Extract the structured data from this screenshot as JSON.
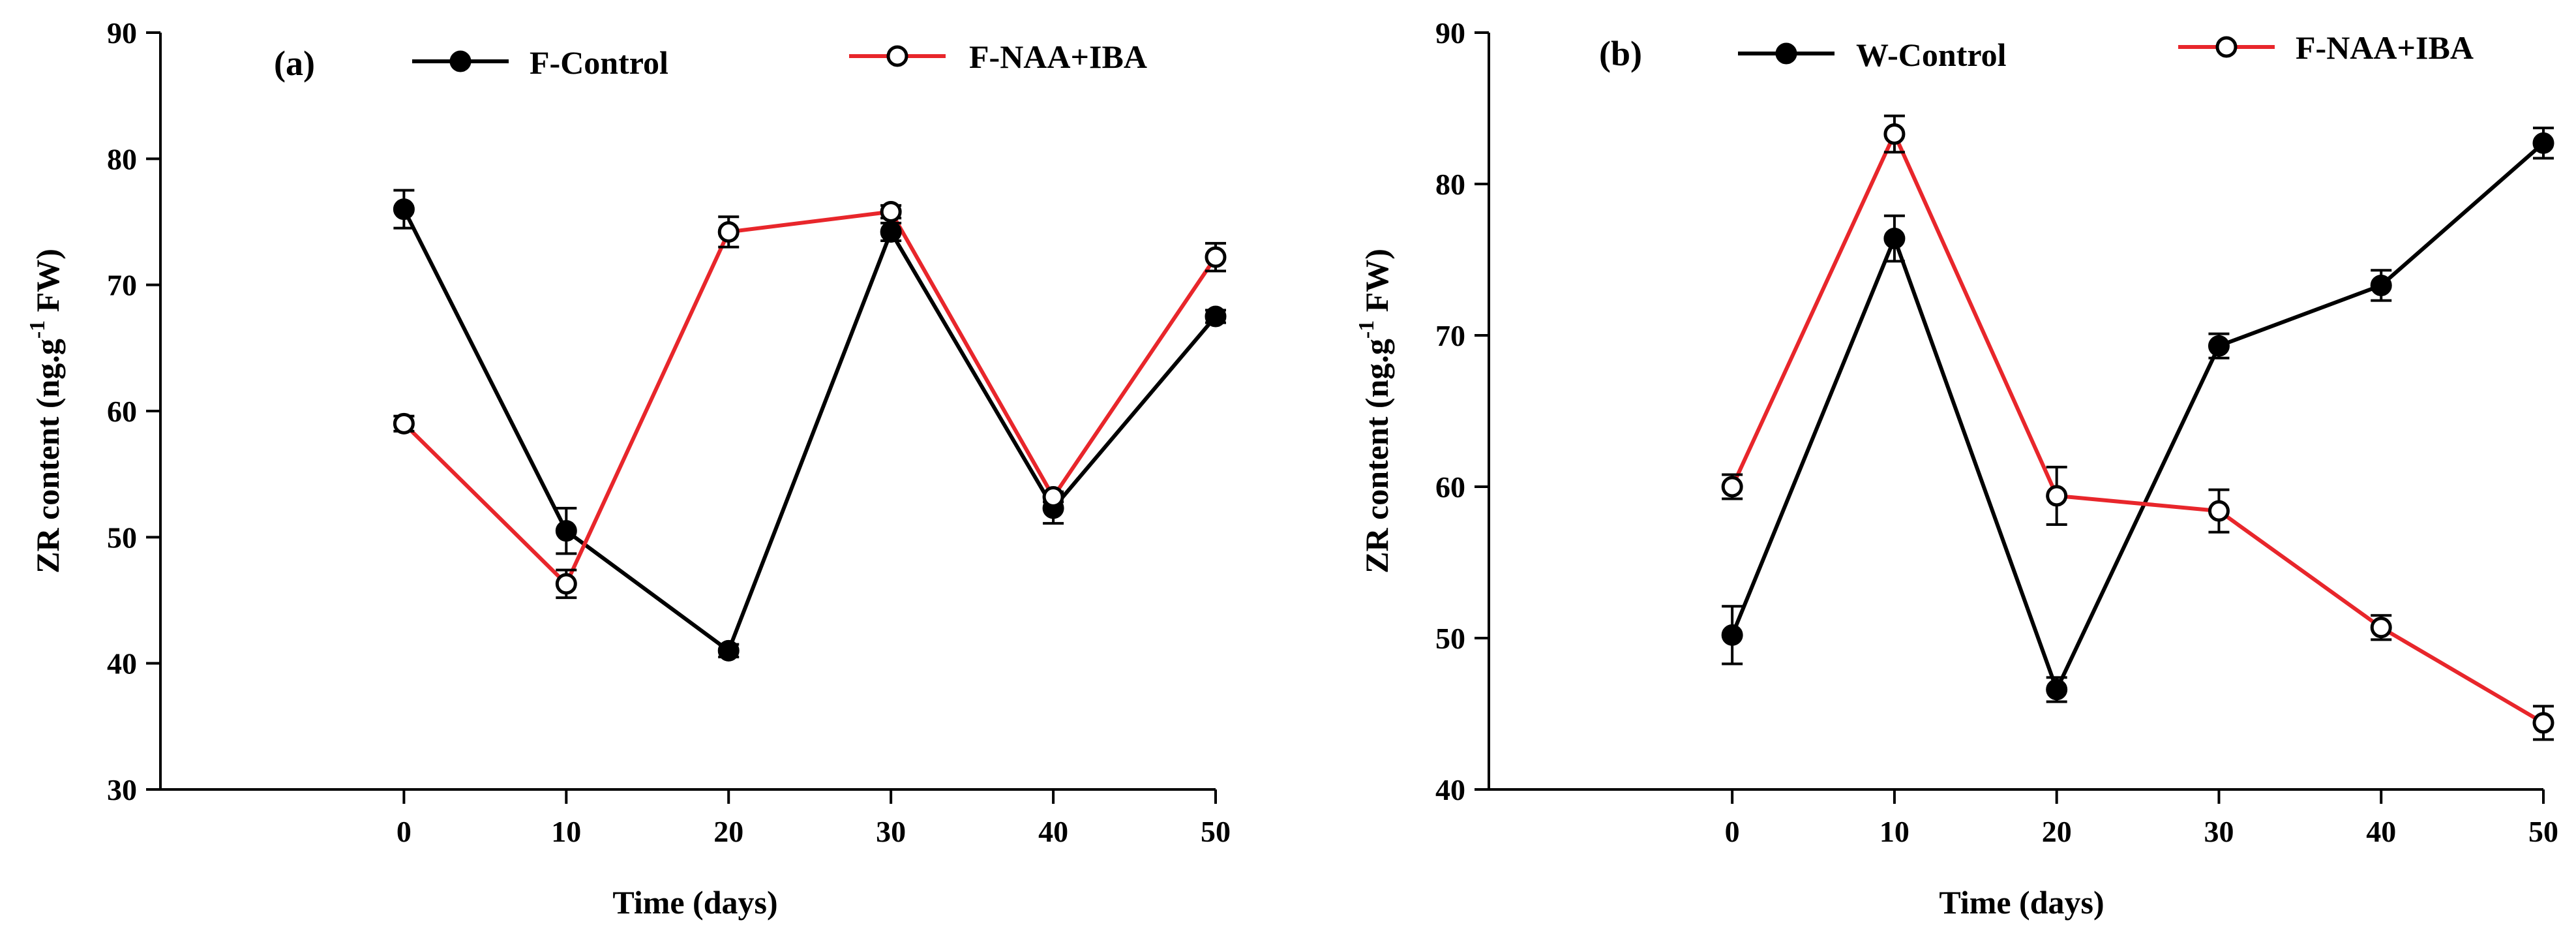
{
  "colors": {
    "control": "#000000",
    "treatment": "#e8262b",
    "axis": "#000000"
  },
  "chart_data": [
    {
      "type": "line",
      "panel_label": "(a)",
      "xlabel": "Time (days)",
      "ylabel": {
        "prefix": "ZR content (ng.g",
        "superscript": "-1",
        "suffix": " FW)"
      },
      "x": [
        0,
        10,
        20,
        30,
        40,
        50
      ],
      "x_ticks": [
        "0",
        "10",
        "20",
        "30",
        "40",
        "50"
      ],
      "xlim": [
        -15,
        50
      ],
      "ylim": [
        30,
        90
      ],
      "y_ticks": [
        "30",
        "40",
        "50",
        "60",
        "70",
        "80",
        "90"
      ],
      "series": [
        {
          "name": "F-Control",
          "marker": "filled-circle",
          "color": "#000000",
          "values": [
            76.0,
            50.5,
            41.0,
            74.2,
            52.3,
            67.5
          ],
          "errors": [
            1.5,
            1.8,
            0.5,
            0.7,
            1.2,
            0.5
          ]
        },
        {
          "name": "F-NAA+IBA",
          "marker": "open-circle",
          "color": "#e8262b",
          "values": [
            59.0,
            46.3,
            74.2,
            75.8,
            53.2,
            72.2
          ],
          "errors": [
            0.6,
            1.1,
            1.2,
            0.5,
            0.4,
            1.1
          ]
        }
      ]
    },
    {
      "type": "line",
      "panel_label": "(b)",
      "xlabel": "Time (days)",
      "ylabel": {
        "prefix": "ZR content (ng.g",
        "superscript": "-1",
        "suffix": " FW)"
      },
      "x": [
        0,
        10,
        20,
        30,
        40,
        50
      ],
      "x_ticks": [
        "0",
        "10",
        "20",
        "30",
        "40",
        "50"
      ],
      "xlim": [
        -15,
        50
      ],
      "ylim": [
        40,
        90
      ],
      "y_ticks": [
        "40",
        "50",
        "60",
        "70",
        "80",
        "90"
      ],
      "series": [
        {
          "name": "W-Control",
          "marker": "filled-circle",
          "color": "#000000",
          "values": [
            50.2,
            76.4,
            46.6,
            69.3,
            73.3,
            82.7
          ],
          "errors": [
            1.9,
            1.5,
            0.8,
            0.8,
            1.0,
            1.0
          ]
        },
        {
          "name": "F-NAA+IBA",
          "marker": "open-circle",
          "color": "#e8262b",
          "values": [
            60.0,
            83.3,
            59.4,
            58.4,
            50.7,
            44.4
          ],
          "errors": [
            0.8,
            1.2,
            1.9,
            1.4,
            0.8,
            1.1
          ]
        }
      ]
    }
  ]
}
